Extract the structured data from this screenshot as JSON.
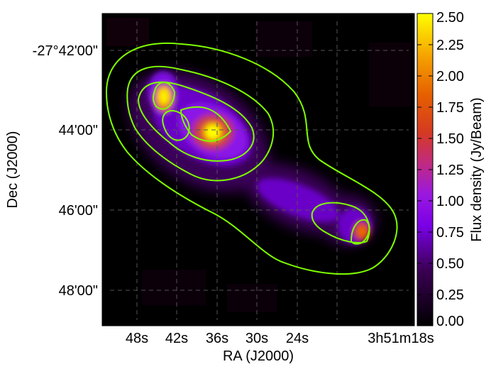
{
  "chart_data": {
    "type": "heatmap",
    "title": "",
    "xlabel": "RA (J2000)",
    "ylabel": "Dec (J2000)",
    "x_ticks": [
      "48s",
      "42s",
      "36s",
      "30s",
      "24s",
      "3h51m18s"
    ],
    "y_ticks": [
      "-27°42'00\"",
      "44'00\"",
      "46'00\"",
      "48'00\""
    ],
    "grid": true,
    "colormap": "gnuplot",
    "colorbar": {
      "label": "Flux density (Jy/Beam)",
      "range": [
        0.0,
        2.5
      ],
      "ticks": [
        "0.00",
        "0.25",
        "0.50",
        "0.75",
        "1.00",
        "1.25",
        "1.50",
        "1.75",
        "2.00",
        "2.25",
        "2.50"
      ]
    },
    "sources": [
      {
        "ra_s": 45.5,
        "dec_arcmin": 43.1,
        "peak": 2.5
      },
      {
        "ra_s": 38.8,
        "dec_arcmin": 44.0,
        "peak": 2.5
      },
      {
        "ra_s": 22.9,
        "dec_arcmin": 46.5,
        "peak": 1.6
      }
    ],
    "contour_color": "#7fff00",
    "contour_levels": 4
  }
}
